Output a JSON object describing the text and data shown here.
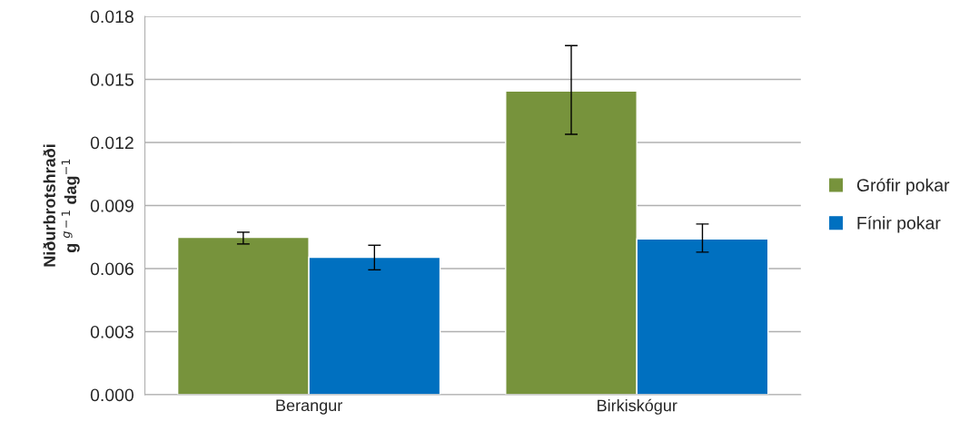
{
  "chart_data": {
    "type": "bar",
    "ylabel": "Niðurbrotshraði\ng $^{g−1}$ dag$^{−1}$",
    "categories": [
      "Berangur",
      "Birkiskógur"
    ],
    "series": [
      {
        "name": "Grófir pokar",
        "color": "#77933c",
        "values": [
          0.00749,
          0.01445
        ],
        "errors": [
          [
            0.00717,
            0.00773
          ],
          [
            0.01239,
            0.01661
          ]
        ]
      },
      {
        "name": "Fínir pokar",
        "color": "#0070c0",
        "values": [
          0.00654,
          0.00741
        ],
        "errors": [
          [
            0.00594,
            0.00711
          ],
          [
            0.00678,
            0.00812
          ]
        ]
      }
    ],
    "ylim": [
      0,
      0.018
    ],
    "yticks": [
      {
        "value": 0,
        "label": "0.000"
      },
      {
        "value": 0.003,
        "label": "0.003"
      },
      {
        "value": 0.006,
        "label": "0.006"
      },
      {
        "value": 0.009,
        "label": "0.009"
      },
      {
        "value": 0.012,
        "label": "0.012"
      },
      {
        "value": 0.015,
        "label": "0.015"
      },
      {
        "value": 0.018,
        "label": "0.018"
      }
    ],
    "grid": "y",
    "legend": "right"
  }
}
